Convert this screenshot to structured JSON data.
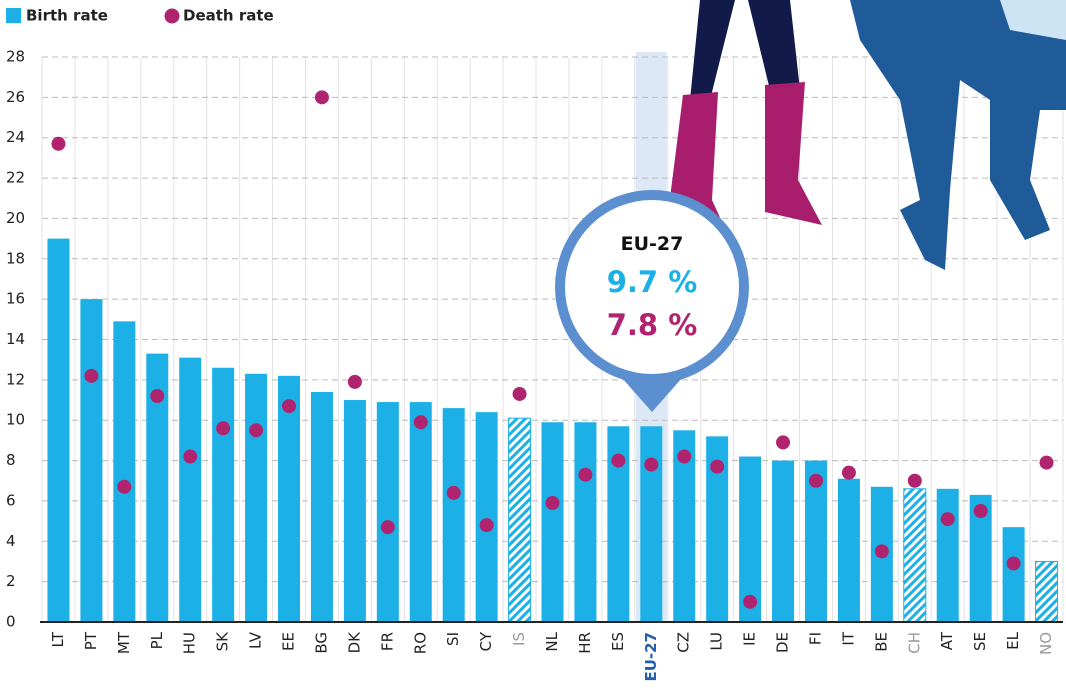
{
  "chart_data": {
    "type": "bar",
    "legend_position": "top-left",
    "grid": true,
    "categories": [
      "LT",
      "PT",
      "MT",
      "PL",
      "HU",
      "SK",
      "LV",
      "EE",
      "BG",
      "DK",
      "FR",
      "RO",
      "SI",
      "CY",
      "IS",
      "NL",
      "HR",
      "ES",
      "EU-27",
      "CZ",
      "LU",
      "IE",
      "DE",
      "FI",
      "IT",
      "BE",
      "CH",
      "AT",
      "SE",
      "EL",
      "NO"
    ],
    "series": [
      {
        "name": "Birth rate",
        "color": "#1cb0e6",
        "values": [
          19.0,
          16.0,
          14.9,
          13.3,
          13.1,
          12.6,
          12.3,
          12.2,
          11.4,
          11.0,
          10.9,
          10.9,
          10.6,
          10.4,
          10.1,
          9.9,
          9.9,
          9.7,
          9.7,
          9.5,
          9.2,
          8.2,
          8.0,
          8.0,
          7.1,
          6.7,
          6.6,
          6.6,
          6.3,
          4.7,
          3.0
        ]
      },
      {
        "name": "Death rate",
        "color": "#b0246f",
        "values": [
          23.7,
          12.2,
          6.7,
          11.2,
          8.2,
          9.6,
          9.5,
          10.7,
          26.0,
          11.9,
          4.7,
          9.9,
          6.4,
          4.8,
          11.3,
          5.9,
          7.3,
          8.0,
          7.8,
          8.2,
          7.7,
          1.0,
          8.9,
          7.0,
          7.4,
          3.5,
          7.0,
          5.1,
          5.5,
          2.9,
          7.9
        ]
      }
    ],
    "hatched_categories": [
      "IS",
      "CH",
      "NO"
    ],
    "highlight_category": "EU-27",
    "callout": {
      "title": "EU-27",
      "birth_label": "9.7 %",
      "death_label": "7.8 %"
    },
    "ylim": [
      0,
      28
    ],
    "yticks": [
      0,
      2,
      4,
      6,
      8,
      10,
      12,
      14,
      16,
      18,
      20,
      22,
      24,
      26,
      28
    ]
  }
}
